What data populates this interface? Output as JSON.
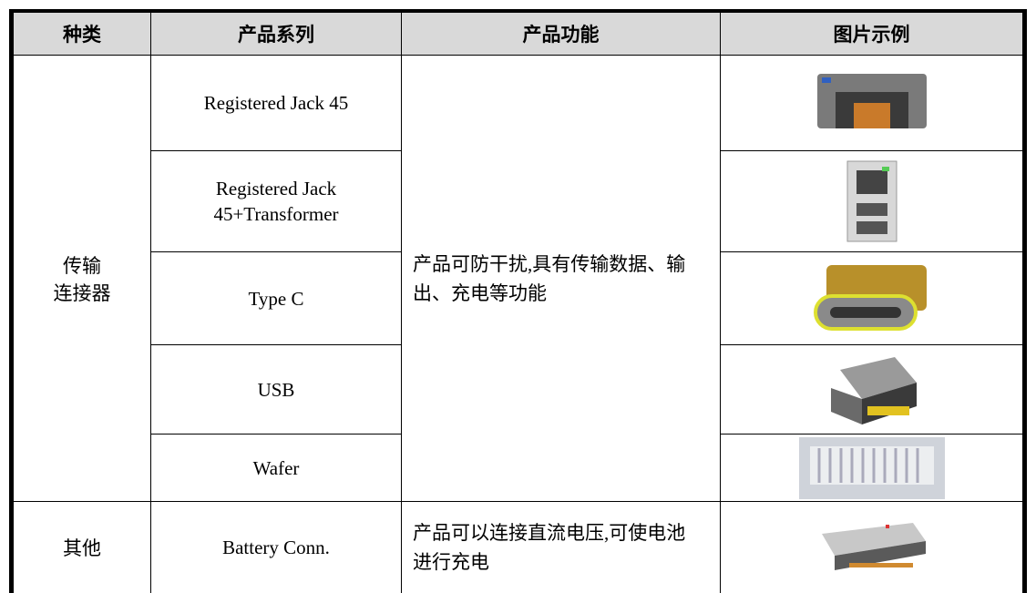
{
  "table": {
    "header": [
      "种类",
      "产品系列",
      "产品功能",
      "图片示例"
    ],
    "groups": [
      {
        "category_lines": [
          "传输",
          "连接器"
        ],
        "function": "产品可防干扰,具有传输数据、输出、充电等功能",
        "series": [
          "Registered Jack 45",
          "Registered Jack 45+Transformer",
          "Type C",
          "USB",
          "Wafer"
        ]
      },
      {
        "category_lines": [
          "其他"
        ],
        "function": "产品可以连接直流电压,可使电池进行充电",
        "series": [
          "Battery Conn."
        ]
      }
    ]
  }
}
